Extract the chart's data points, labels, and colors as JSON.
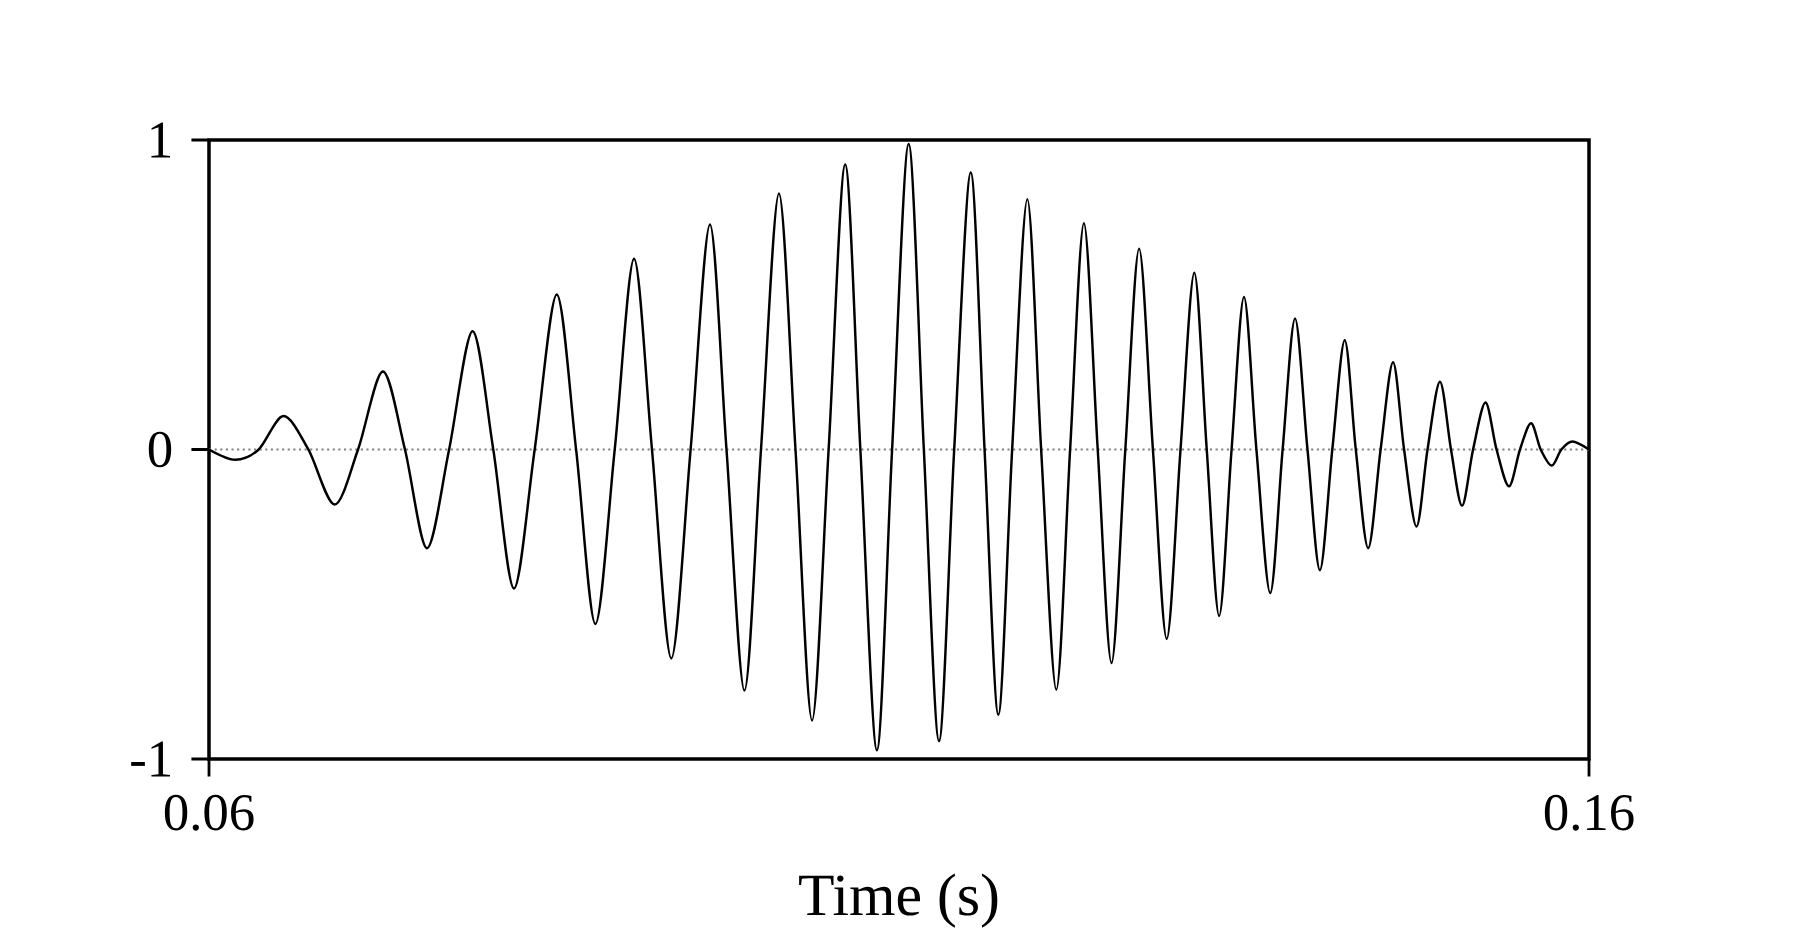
{
  "chart_data": {
    "type": "line",
    "xlabel": "Time (s)",
    "xlim": [
      0.06,
      0.16
    ],
    "ylim": [
      -1,
      1
    ],
    "xticks": [
      0.06,
      0.16
    ],
    "yticks": [
      -1,
      0,
      1
    ],
    "ref_lines": [
      {
        "axis": "y",
        "value": 0,
        "color": "#808080",
        "line_style": "dotted"
      }
    ],
    "series": [
      {
        "color": "#000000",
        "x": [
          0.06,
          0.0619,
          0.0636,
          0.0654,
          0.0672,
          0.0691,
          0.0708,
          0.0726,
          0.0742,
          0.0758,
          0.0774,
          0.0791,
          0.0806,
          0.0821,
          0.0836,
          0.0852,
          0.0866,
          0.088,
          0.0894,
          0.0908,
          0.0921,
          0.0935,
          0.0949,
          0.0963,
          0.0975,
          0.0988,
          0.1,
          0.1013,
          0.1025,
          0.1037,
          0.1049,
          0.1061,
          0.1072,
          0.1084,
          0.1095,
          0.1107,
          0.1118,
          0.1129,
          0.114,
          0.1152,
          0.1162,
          0.1172,
          0.1182,
          0.1193,
          0.1203,
          0.1214,
          0.1224,
          0.1234,
          0.1244,
          0.1254,
          0.1264,
          0.1274,
          0.1284,
          0.1294,
          0.1304,
          0.1314,
          0.1323,
          0.1332,
          0.1341,
          0.135,
          0.1359,
          0.1369,
          0.1378,
          0.1387,
          0.1396,
          0.1405,
          0.1414,
          0.1423,
          0.1431,
          0.144,
          0.1449,
          0.1458,
          0.1466,
          0.1475,
          0.1483,
          0.1492,
          0.15,
          0.1508,
          0.1516,
          0.1525,
          0.1533,
          0.1542,
          0.155,
          0.1558,
          0.1565,
          0.1573,
          0.158,
          0.1588,
          0.16
        ],
        "values": [
          0,
          -0.033,
          0,
          0.108,
          0,
          -0.178,
          0,
          0.252,
          0,
          -0.319,
          0,
          0.382,
          0,
          -0.449,
          0,
          0.501,
          0,
          -0.564,
          0,
          0.616,
          0,
          -0.675,
          0,
          0.727,
          0,
          -0.779,
          0,
          0.827,
          0,
          -0.876,
          0,
          0.921,
          0,
          -0.972,
          0,
          0.987,
          0,
          -0.942,
          0,
          0.895,
          0,
          -0.857,
          0,
          0.809,
          0,
          -0.776,
          0,
          0.731,
          0,
          -0.69,
          0,
          0.649,
          0,
          -0.612,
          0,
          0.571,
          0,
          -0.538,
          0,
          0.493,
          0,
          -0.464,
          0,
          0.423,
          0,
          -0.39,
          0,
          0.353,
          0,
          -0.319,
          0,
          0.282,
          0,
          -0.249,
          0,
          0.219,
          0,
          -0.182,
          0,
          0.152,
          0,
          -0.119,
          0,
          0.085,
          0,
          -0.052,
          0,
          0.026,
          0
        ]
      }
    ]
  }
}
